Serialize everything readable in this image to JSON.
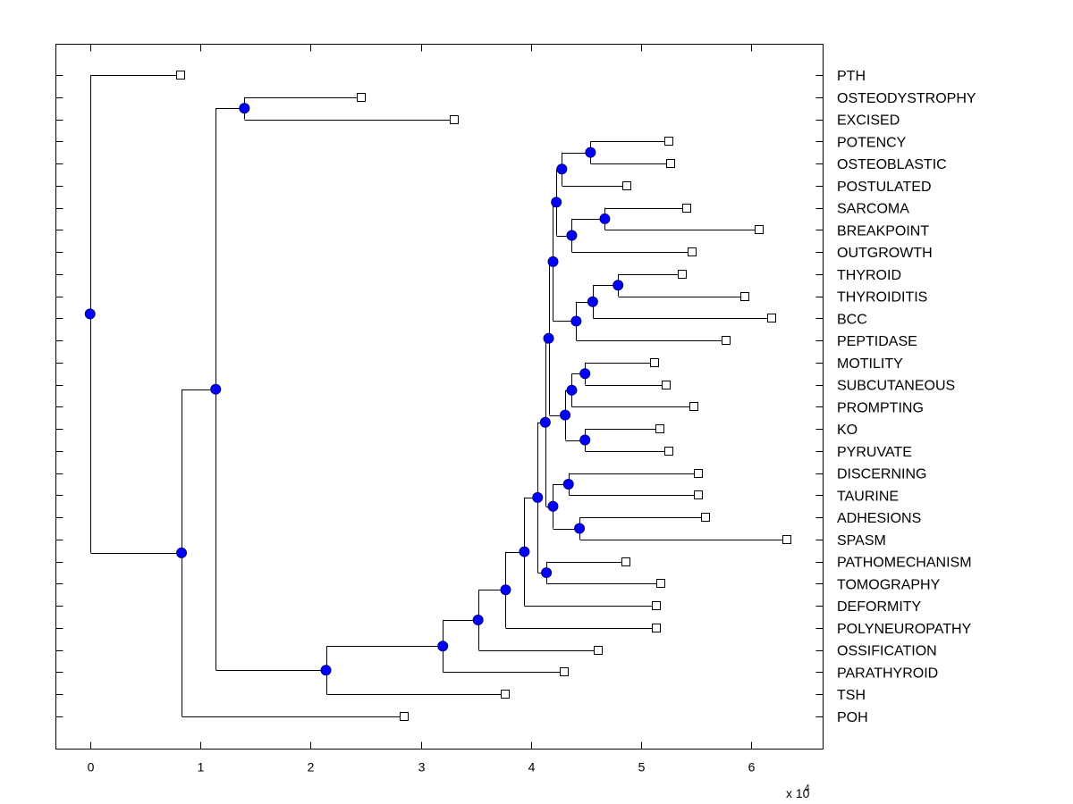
{
  "chart_data": {
    "type": "dendrogram",
    "title": "",
    "xlabel": "",
    "ylabel": "",
    "x_multiplier_label": "x 10",
    "x_multiplier_exponent": "4",
    "xlim": [
      -0.31,
      6.65
    ],
    "x_ticks": [
      0,
      1,
      2,
      3,
      4,
      5,
      6
    ],
    "x_tick_labels": [
      "0",
      "1",
      "2",
      "3",
      "4",
      "5",
      "6"
    ],
    "grid": false,
    "orientation": "leaves-right",
    "node_marker": {
      "shape": "circle",
      "fill": "#0000ff",
      "stroke": "#00007f"
    },
    "leaf_marker": {
      "shape": "square",
      "fill": "#ffffff",
      "stroke": "#000000"
    },
    "line_color": "#000000",
    "leaves": [
      {
        "name": "PTH",
        "x": 0.82
      },
      {
        "name": "OSTEODYSTROPHY",
        "x": 2.46
      },
      {
        "name": "EXCISED",
        "x": 3.3
      },
      {
        "name": "POTENCY",
        "x": 5.25
      },
      {
        "name": "OSTEOBLASTIC",
        "x": 5.27
      },
      {
        "name": "POSTULATED",
        "x": 4.87
      },
      {
        "name": "SARCOMA",
        "x": 5.41
      },
      {
        "name": "BREAKPOINT",
        "x": 6.07
      },
      {
        "name": "OUTGROWTH",
        "x": 5.46
      },
      {
        "name": "THYROID",
        "x": 5.37
      },
      {
        "name": "THYROIDITIS",
        "x": 5.94
      },
      {
        "name": "BCC",
        "x": 6.18
      },
      {
        "name": "PEPTIDASE",
        "x": 5.77
      },
      {
        "name": "MOTILITY",
        "x": 5.12
      },
      {
        "name": "SUBCUTANEOUS",
        "x": 5.23
      },
      {
        "name": "PROMPTING",
        "x": 5.48
      },
      {
        "name": "KO",
        "x": 5.17
      },
      {
        "name": "PYRUVATE",
        "x": 5.25
      },
      {
        "name": "DISCERNING",
        "x": 5.52
      },
      {
        "name": "TAURINE",
        "x": 5.52
      },
      {
        "name": "ADHESIONS",
        "x": 5.58
      },
      {
        "name": "SPASM",
        "x": 6.32
      },
      {
        "name": "PATHOMECHANISM",
        "x": 4.86
      },
      {
        "name": "TOMOGRAPHY",
        "x": 5.18
      },
      {
        "name": "DEFORMITY",
        "x": 5.14
      },
      {
        "name": "POLYNEUROPATHY",
        "x": 5.14
      },
      {
        "name": "OSSIFICATION",
        "x": 4.61
      },
      {
        "name": "PARATHYROID",
        "x": 4.3
      },
      {
        "name": "TSH",
        "x": 3.77
      },
      {
        "name": "POH",
        "x": 2.85
      }
    ],
    "tree": {
      "x": 0.0,
      "children": [
        {
          "leaf": "PTH"
        },
        {
          "x": 0.83,
          "children": [
            {
              "x": 1.14,
              "children": [
                {
                  "x": 1.4,
                  "children": [
                    {
                      "leaf": "OSTEODYSTROPHY"
                    },
                    {
                      "leaf": "EXCISED"
                    }
                  ]
                },
                {
                  "x": 2.14,
                  "children": [
                    {
                      "x": 3.2,
                      "children": [
                        {
                          "x": 3.52,
                          "children": [
                            {
                              "x": 3.77,
                              "children": [
                                {
                                  "x": 3.94,
                                  "children": [
                                    {
                                      "x": 4.06,
                                      "children": [
                                        {
                                          "x": 4.13,
                                          "children": [
                                            {
                                              "x": 4.16,
                                              "children": [
                                                {
                                                  "x": 4.2,
                                                  "children": [
                                                    {
                                                      "x": 4.23,
                                                      "children": [
                                                        {
                                                          "x": 4.28,
                                                          "children": [
                                                            {
                                                              "x": 4.54,
                                                              "children": [
                                                                {
                                                                  "leaf": "POTENCY"
                                                                },
                                                                {
                                                                  "leaf": "OSTEOBLASTIC"
                                                                }
                                                              ]
                                                            },
                                                            {
                                                              "leaf": "POSTULATED"
                                                            }
                                                          ]
                                                        },
                                                        {
                                                          "x": 4.37,
                                                          "children": [
                                                            {
                                                              "x": 4.67,
                                                              "children": [
                                                                {
                                                                  "leaf": "SARCOMA"
                                                                },
                                                                {
                                                                  "leaf": "BREAKPOINT"
                                                                }
                                                              ]
                                                            },
                                                            {
                                                              "leaf": "OUTGROWTH"
                                                            }
                                                          ]
                                                        }
                                                      ]
                                                    },
                                                    {
                                                      "x": 4.41,
                                                      "children": [
                                                        {
                                                          "x": 4.56,
                                                          "children": [
                                                            {
                                                              "x": 4.79,
                                                              "children": [
                                                                {
                                                                  "leaf": "THYROID"
                                                                },
                                                                {
                                                                  "leaf": "THYROIDITIS"
                                                                }
                                                              ]
                                                            },
                                                            {
                                                              "leaf": "BCC"
                                                            }
                                                          ]
                                                        },
                                                        {
                                                          "leaf": "PEPTIDASE"
                                                        }
                                                      ]
                                                    }
                                                  ]
                                                },
                                                {
                                                  "x": 4.31,
                                                  "children": [
                                                    {
                                                      "x": 4.37,
                                                      "children": [
                                                        {
                                                          "x": 4.49,
                                                          "children": [
                                                            {
                                                              "leaf": "MOTILITY"
                                                            },
                                                            {
                                                              "leaf": "SUBCUTANEOUS"
                                                            }
                                                          ]
                                                        },
                                                        {
                                                          "leaf": "PROMPTING"
                                                        }
                                                      ]
                                                    },
                                                    {
                                                      "x": 4.49,
                                                      "children": [
                                                        {
                                                          "leaf": "KO"
                                                        },
                                                        {
                                                          "leaf": "PYRUVATE"
                                                        }
                                                      ]
                                                    }
                                                  ]
                                                }
                                              ]
                                            },
                                            {
                                              "x": 4.2,
                                              "children": [
                                                {
                                                  "x": 4.34,
                                                  "children": [
                                                    {
                                                      "leaf": "DISCERNING"
                                                    },
                                                    {
                                                      "leaf": "TAURINE"
                                                    }
                                                  ]
                                                },
                                                {
                                                  "x": 4.44,
                                                  "children": [
                                                    {
                                                      "leaf": "ADHESIONS"
                                                    },
                                                    {
                                                      "leaf": "SPASM"
                                                    }
                                                  ]
                                                }
                                              ]
                                            }
                                          ]
                                        },
                                        {
                                          "x": 4.14,
                                          "children": [
                                            {
                                              "leaf": "PATHOMECHANISM"
                                            },
                                            {
                                              "leaf": "TOMOGRAPHY"
                                            }
                                          ]
                                        }
                                      ]
                                    },
                                    {
                                      "leaf": "DEFORMITY"
                                    }
                                  ]
                                },
                                {
                                  "leaf": "POLYNEUROPATHY"
                                }
                              ]
                            },
                            {
                              "leaf": "OSSIFICATION"
                            }
                          ]
                        },
                        {
                          "leaf": "PARATHYROID"
                        }
                      ]
                    },
                    {
                      "leaf": "TSH"
                    }
                  ]
                }
              ]
            },
            {
              "leaf": "POH"
            }
          ]
        }
      ]
    }
  }
}
